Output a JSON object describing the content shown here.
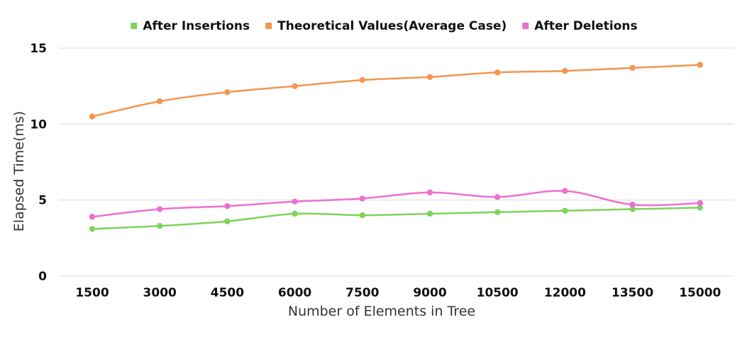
{
  "chart_data": {
    "type": "line",
    "title": "",
    "xlabel": "Number of Elements in Tree",
    "ylabel": "Elapsed Time(ms)",
    "categories": [
      "1500",
      "3000",
      "4500",
      "6000",
      "7500",
      "9000",
      "10500",
      "12000",
      "13500",
      "15000"
    ],
    "yticks": [
      "0",
      "5",
      "10",
      "15"
    ],
    "ylim": [
      0,
      15
    ],
    "grid": true,
    "legend_position": "top",
    "series": [
      {
        "name": "After Insertions",
        "color": "#7ed35a",
        "values": [
          3.1,
          3.3,
          3.6,
          4.1,
          4.0,
          4.1,
          4.2,
          4.3,
          4.4,
          4.5
        ]
      },
      {
        "name": "Theoretical Values(Average Case)",
        "color": "#f5954e",
        "values": [
          10.5,
          11.5,
          12.1,
          12.5,
          12.9,
          13.1,
          13.4,
          13.5,
          13.7,
          13.9
        ]
      },
      {
        "name": "After Deletions",
        "color": "#ee6fd0",
        "values": [
          3.9,
          4.4,
          4.6,
          4.9,
          5.1,
          5.5,
          5.2,
          5.6,
          4.7,
          4.8
        ]
      }
    ]
  }
}
